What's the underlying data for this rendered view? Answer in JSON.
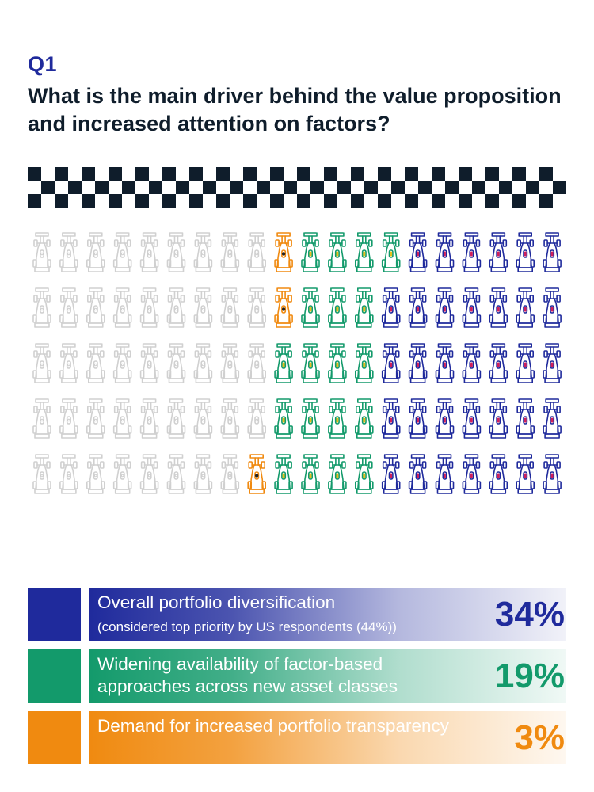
{
  "question": {
    "label": "Q1",
    "text": "What is the main driver behind the value proposition and increased attention on factors?"
  },
  "colors": {
    "diversification": "#1f2a9c",
    "asset_classes": "#139a6b",
    "transparency": "#f08a10",
    "other": "#d0d0d0",
    "checker": "#0f1d2b"
  },
  "legend": [
    {
      "label": "Overall portfolio diversification",
      "sublabel": "(considered top priority by US respondents (44%))",
      "value": "34%"
    },
    {
      "label": "Widening availability of factor-based approaches across new asset classes",
      "sublabel": "",
      "value": "19%"
    },
    {
      "label": "Demand for increased portfolio transparency",
      "sublabel": "",
      "value": "3%"
    }
  ],
  "chart_data": {
    "type": "waffle",
    "total_units": 100,
    "rows": 5,
    "columns": 20,
    "series": [
      {
        "name": "Overall portfolio diversification",
        "value": 34,
        "color_key": "diversification"
      },
      {
        "name": "Widening availability of factor-based approaches across new asset classes",
        "value": 19,
        "color_key": "asset_classes"
      },
      {
        "name": "Demand for increased portfolio transparency",
        "value": 3,
        "color_key": "transparency"
      },
      {
        "value": 44,
        "color_key": "other"
      }
    ]
  }
}
